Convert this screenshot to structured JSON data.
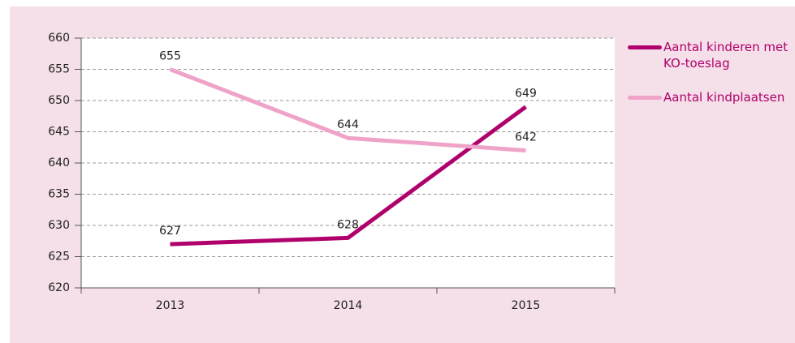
{
  "chart_data": {
    "type": "line",
    "categories": [
      "2013",
      "2014",
      "2015"
    ],
    "series": [
      {
        "name": "Aantal kinderen met KO-toeslag",
        "color": "#b0006b",
        "values": [
          627,
          628,
          649
        ]
      },
      {
        "name": "Aantal kindplaatsen",
        "color": "#f0a3c8",
        "values": [
          655,
          644,
          642
        ]
      }
    ],
    "ylim": [
      620,
      660
    ],
    "yticks": [
      620,
      625,
      630,
      635,
      640,
      645,
      650,
      655,
      660
    ],
    "grid": true
  }
}
